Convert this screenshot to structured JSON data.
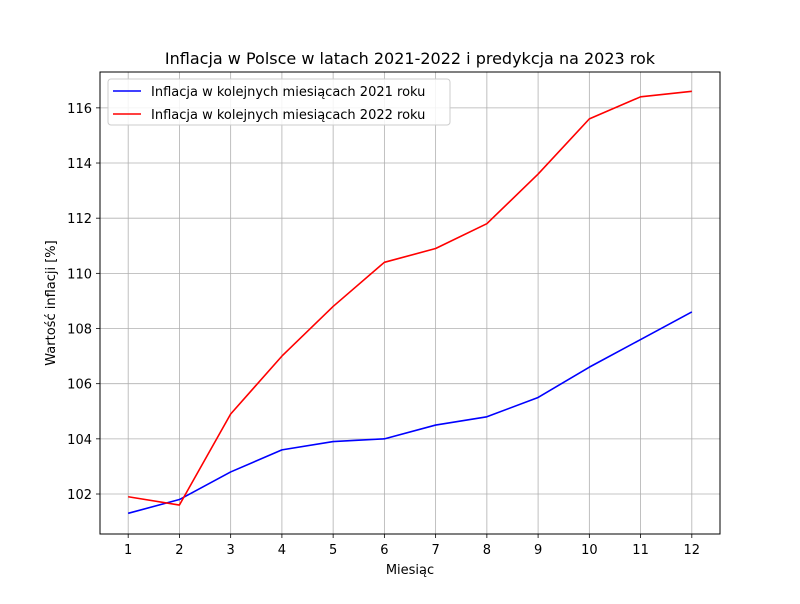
{
  "chart_data": {
    "type": "line",
    "title": "Inflacja w Polsce w latach 2021-2022 i predykcja na 2023 rok",
    "xlabel": "Miesiąc",
    "ylabel": "Wartość inflacji [%]",
    "x": [
      1,
      2,
      3,
      4,
      5,
      6,
      7,
      8,
      9,
      10,
      11,
      12
    ],
    "xticks": [
      "1",
      "2",
      "3",
      "4",
      "5",
      "6",
      "7",
      "8",
      "9",
      "10",
      "11",
      "12"
    ],
    "yticks": [
      "102",
      "104",
      "106",
      "108",
      "110",
      "112",
      "114",
      "116"
    ],
    "xlim": [
      0.45,
      12.55
    ],
    "ylim": [
      100.55,
      117.3
    ],
    "grid": true,
    "legend_position": "top-left",
    "series": [
      {
        "name": "Inflacja w kolejnych miesiącach 2021 roku",
        "color": "#0000ff",
        "values": [
          101.3,
          101.8,
          102.8,
          103.6,
          103.9,
          104.0,
          104.5,
          104.8,
          105.5,
          106.6,
          107.6,
          108.6
        ]
      },
      {
        "name": "Inflacja w kolejnych miesiącach 2022 roku",
        "color": "#ff0000",
        "values": [
          101.9,
          101.6,
          104.9,
          107.0,
          108.8,
          110.4,
          110.9,
          111.8,
          113.6,
          115.6,
          116.4,
          116.6
        ]
      }
    ]
  }
}
